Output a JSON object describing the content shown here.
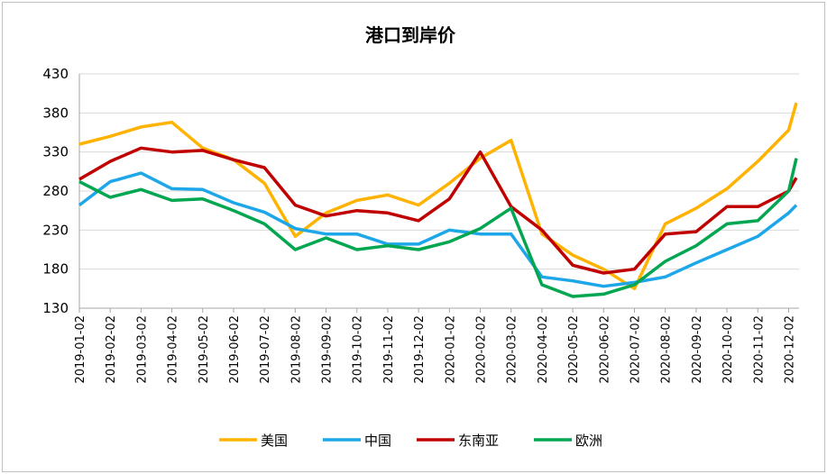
{
  "chart_data": {
    "type": "line",
    "title": "港口到岸价",
    "xlabel": "",
    "ylabel": "",
    "ylim": [
      130,
      430
    ],
    "yticks": [
      130,
      180,
      230,
      280,
      330,
      380,
      430
    ],
    "grid": "horizontal",
    "legend_position": "bottom",
    "x_tick_labels": [
      "2019-01-02",
      "2019-02-02",
      "2019-03-02",
      "2019-04-02",
      "2019-05-02",
      "2019-06-02",
      "2019-07-02",
      "2019-08-02",
      "2019-09-02",
      "2019-10-02",
      "2019-11-02",
      "2019-12-02",
      "2020-01-02",
      "2020-02-02",
      "2020-03-02",
      "2020-04-02",
      "2020-05-02",
      "2020-06-02",
      "2020-07-02",
      "2020-08-02",
      "2020-09-02",
      "2020-10-02",
      "2020-11-02",
      "2020-12-02"
    ],
    "x_months": [
      0,
      1,
      2,
      3,
      4,
      5,
      6,
      7,
      8,
      9,
      10,
      11,
      12,
      13,
      14,
      15,
      16,
      17,
      18,
      19,
      20,
      21,
      22,
      23,
      23.25
    ],
    "series": [
      {
        "name": "美国",
        "color": "#FFB300",
        "values": [
          340,
          350,
          362,
          368,
          335,
          320,
          290,
          222,
          252,
          268,
          275,
          262,
          290,
          322,
          345,
          225,
          198,
          180,
          155,
          238,
          258,
          283,
          318,
          358,
          393
        ]
      },
      {
        "name": "中国",
        "color": "#1EA7E8",
        "values": [
          262,
          292,
          303,
          283,
          282,
          265,
          253,
          232,
          225,
          225,
          212,
          212,
          230,
          225,
          225,
          170,
          165,
          158,
          163,
          170,
          188,
          205,
          222,
          252,
          262
        ]
      },
      {
        "name": "东南亚",
        "color": "#C00000",
        "values": [
          295,
          318,
          335,
          330,
          332,
          320,
          310,
          262,
          248,
          255,
          252,
          242,
          270,
          330,
          260,
          230,
          185,
          175,
          180,
          225,
          228,
          260,
          260,
          280,
          297
        ]
      },
      {
        "name": "欧洲",
        "color": "#00A650",
        "values": [
          292,
          272,
          282,
          268,
          270,
          255,
          238,
          205,
          220,
          205,
          210,
          205,
          215,
          232,
          258,
          160,
          145,
          148,
          160,
          190,
          210,
          238,
          242,
          280,
          322
        ]
      }
    ]
  }
}
